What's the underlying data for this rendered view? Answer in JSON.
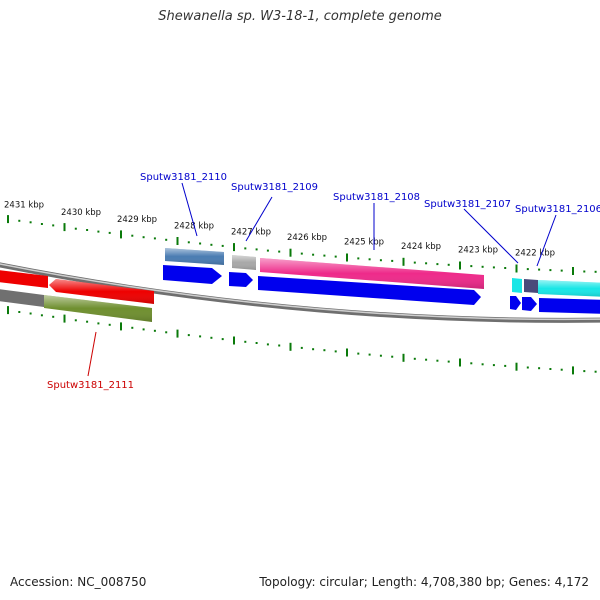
{
  "title": "Shewanella sp. W3-18-1, complete genome",
  "accession": "Accession: NC_008750",
  "topology": "Topology: circular; Length: 4,708,380 bp; Genes: 4,172",
  "colors": {
    "backbone": "#8a8a8a",
    "tick_major": "#0a7a0a",
    "label_forward": "#0000cc",
    "label_reverse": "#cc0000",
    "cds_forward": "#0000ee",
    "cds_reverse": "#ee0000"
  },
  "scale_ticks": [
    {
      "label": "2431 kbp"
    },
    {
      "label": "2430 kbp"
    },
    {
      "label": "2429 kbp"
    },
    {
      "label": "2428 kbp"
    },
    {
      "label": "2427 kbp"
    },
    {
      "label": "2426 kbp"
    },
    {
      "label": "2425 kbp"
    },
    {
      "label": "2424 kbp"
    },
    {
      "label": "2423 kbp"
    },
    {
      "label": "2422 kbp"
    }
  ],
  "gene_labels": [
    {
      "name": "Sputw3181_2110",
      "strand": "forward"
    },
    {
      "name": "Sputw3181_2109",
      "strand": "forward"
    },
    {
      "name": "Sputw3181_2108",
      "strand": "forward"
    },
    {
      "name": "Sputw3181_2107",
      "strand": "forward"
    },
    {
      "name": "Sputw3181_2106",
      "strand": "forward"
    },
    {
      "name": "Sputw3181_2111",
      "strand": "reverse"
    }
  ]
}
